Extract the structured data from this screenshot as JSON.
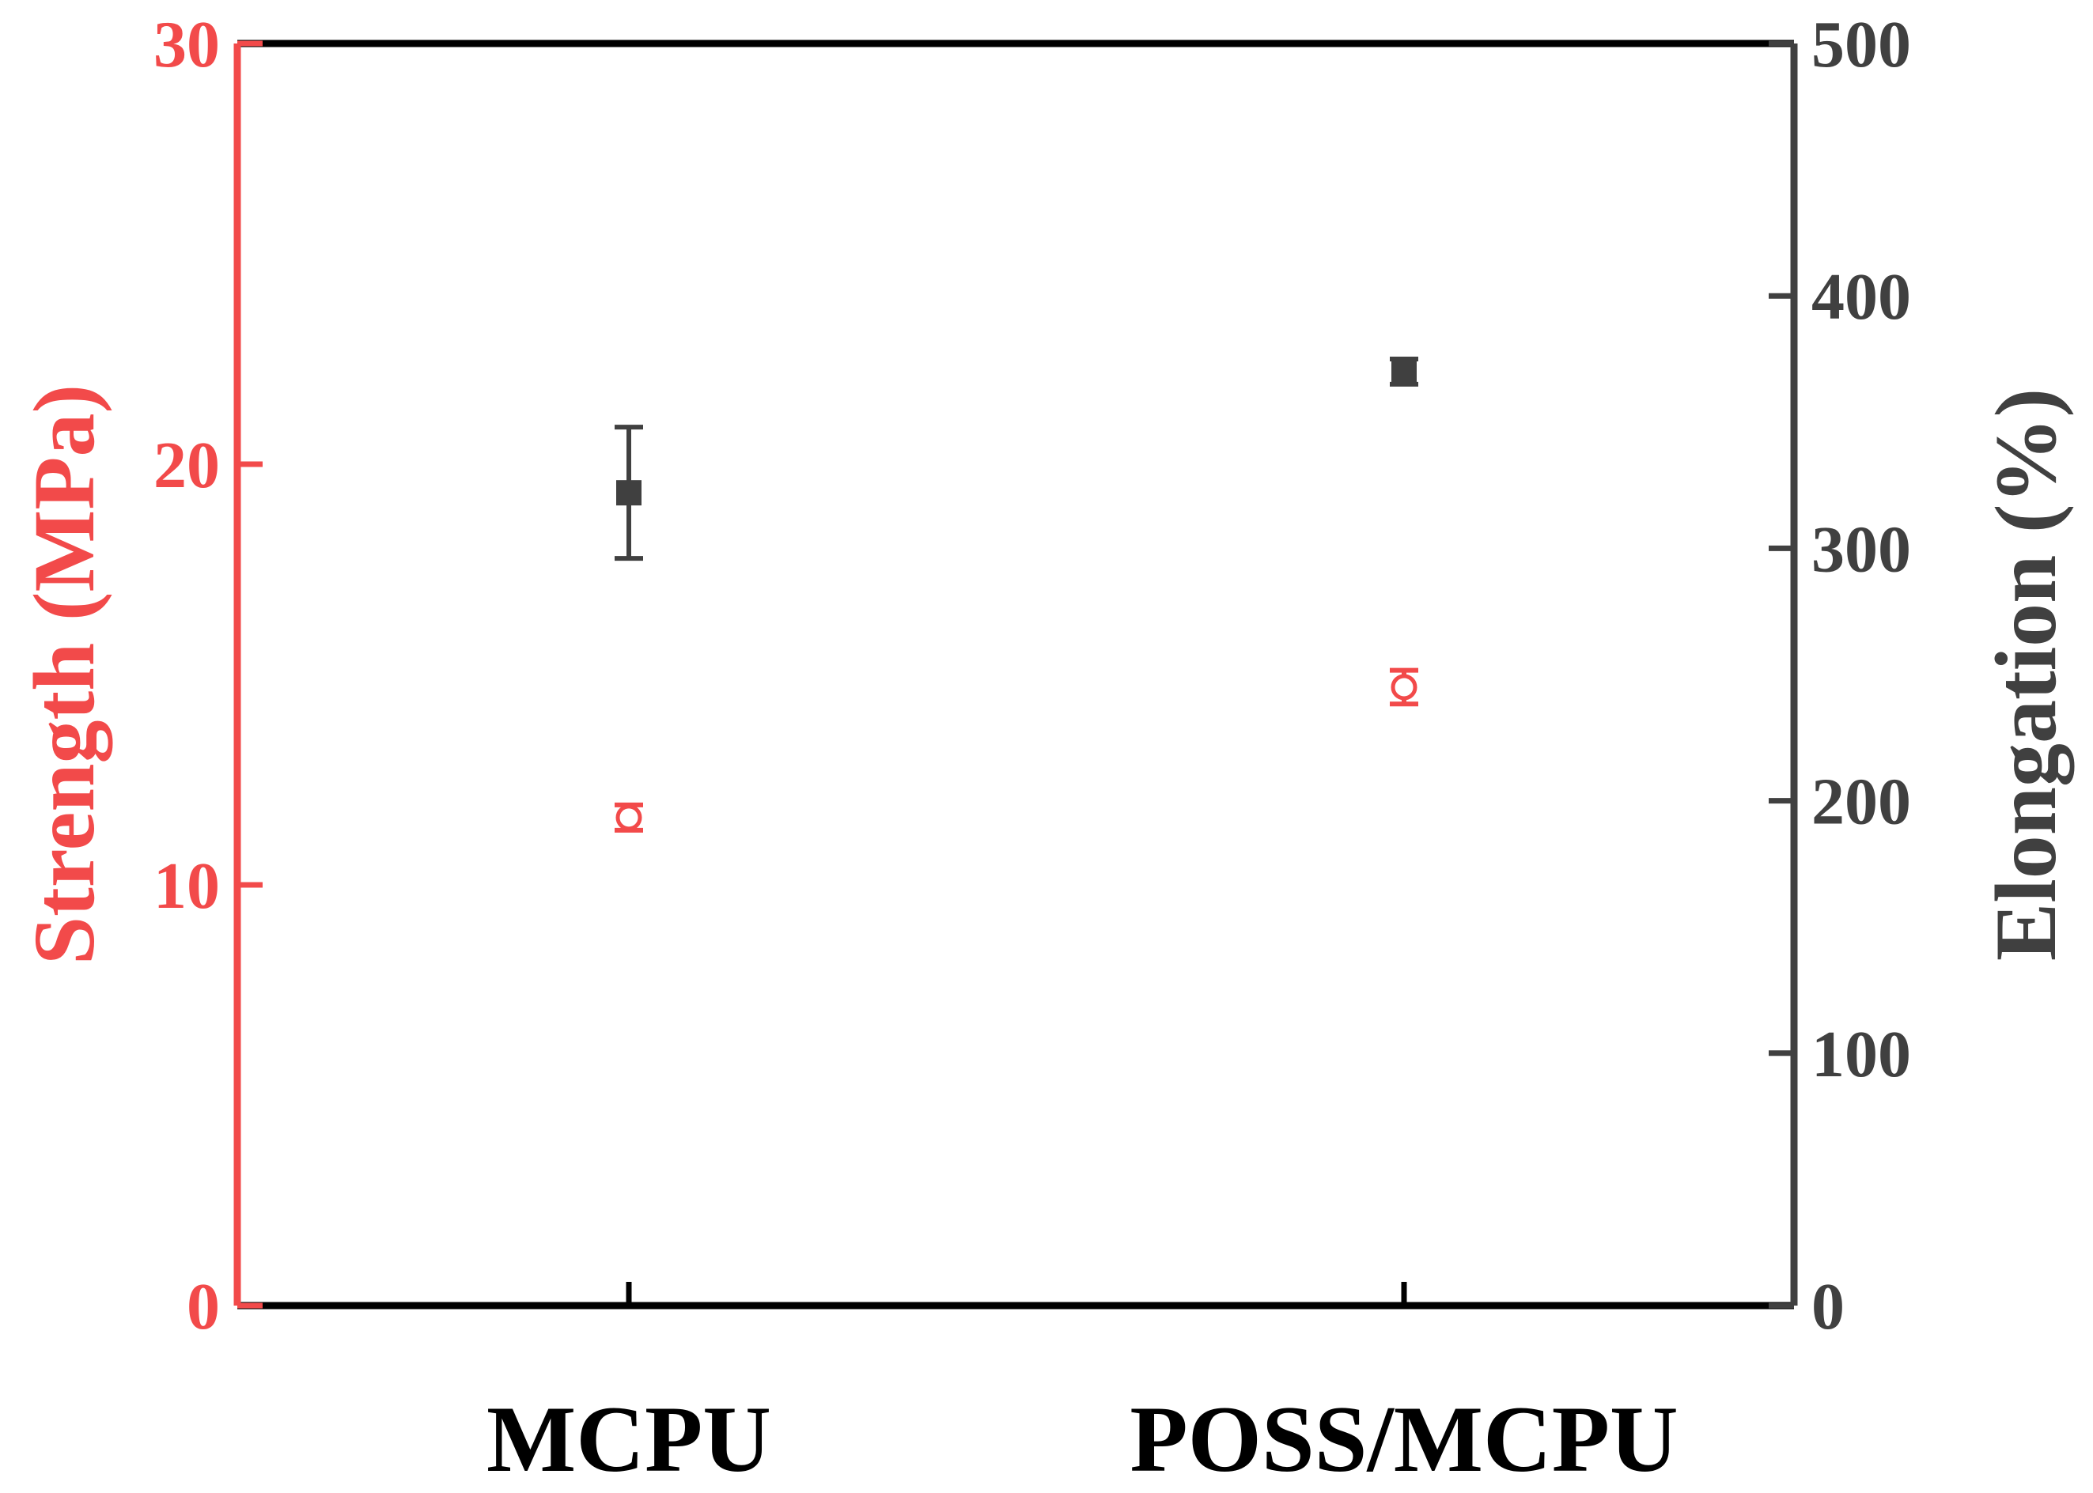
{
  "chart_data": {
    "type": "scatter",
    "categories": [
      "MCPU",
      "POSS/MCPU"
    ],
    "y_left": {
      "label": "Strength (MPa)",
      "range": [
        0,
        30
      ],
      "ticks": [
        0,
        10,
        20,
        30
      ],
      "color": "#f24a4a"
    },
    "y_right": {
      "label": "Elongation (%)",
      "range": [
        0,
        500
      ],
      "ticks": [
        0,
        100,
        200,
        300,
        400,
        500
      ],
      "color": "#404040"
    },
    "series": [
      {
        "axis": "left",
        "marker": "open-circle",
        "color": "#f24a4a",
        "values": [
          11.6,
          14.7
        ],
        "errors": [
          0.3,
          0.4
        ]
      },
      {
        "axis": "right",
        "marker": "filled-square",
        "color": "#404040",
        "values": [
          322,
          370
        ],
        "errors": [
          26,
          5
        ]
      }
    ],
    "grid": false,
    "legend": "none"
  }
}
